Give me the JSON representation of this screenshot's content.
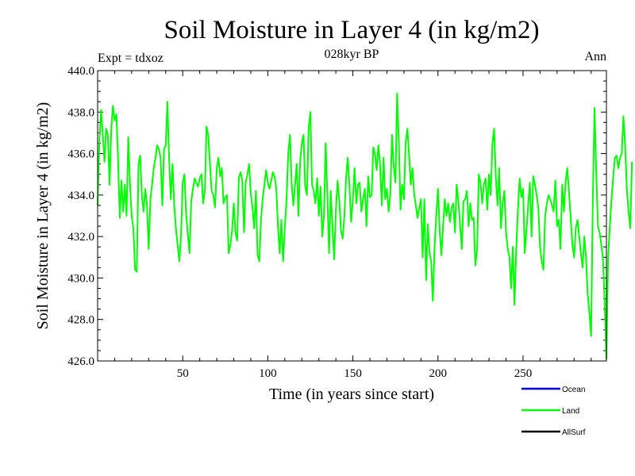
{
  "header": {
    "title": "Soil Moisture in Layer 4 (in kg/m2)",
    "subtitle": "028kyr BP",
    "expt": "Expt = tdxoz",
    "period": "Ann"
  },
  "legend": [
    {
      "name": "Ocean",
      "color": "#0000ff"
    },
    {
      "name": "Land",
      "color": "#00ff00"
    },
    {
      "name": "AllSurf",
      "color": "#000000"
    }
  ],
  "chart_data": {
    "type": "line",
    "title": "Soil Moisture in Layer 4 (in kg/m2)",
    "xlabel": "Time (in years since start)",
    "ylabel": "Soil Moisture in Layer 4 (in kg/m2)",
    "xlim": [
      0,
      299
    ],
    "ylim": [
      426.0,
      440.0
    ],
    "x_ticks": [
      50,
      100,
      150,
      200,
      250
    ],
    "y_ticks": [
      "426.0",
      "428.0",
      "430.0",
      "432.0",
      "434.0",
      "436.0",
      "438.0",
      "440.0"
    ],
    "series": [
      {
        "name": "Land",
        "color": "#00ff00",
        "values": [
          433.5,
          436.5,
          438.1,
          437.0,
          435.6,
          437.2,
          436.9,
          434.5,
          437.2,
          438.3,
          437.6,
          437.9,
          435.8,
          432.9,
          434.7,
          433.2,
          434.5,
          433.0,
          436.8,
          434.6,
          433.0,
          432.4,
          430.4,
          430.3,
          435.5,
          435.9,
          434.0,
          433.2,
          434.3,
          433.5,
          431.4,
          433.8,
          434.5,
          435.3,
          435.8,
          436.4,
          436.2,
          435.8,
          433.5,
          436.2,
          436.4,
          438.5,
          435.8,
          433.8,
          435.5,
          433.5,
          432.4,
          431.6,
          430.8,
          432.0,
          434.6,
          435.0,
          433.1,
          432.1,
          431.2,
          433.7,
          434.3,
          434.8,
          434.6,
          434.4,
          434.8,
          435.0,
          433.6,
          434.2,
          437.3,
          436.9,
          435.5,
          434.2,
          434.0,
          433.4,
          435.3,
          435.8,
          434.9,
          435.3,
          433.6,
          433.9,
          434.0,
          431.2,
          431.6,
          432.3,
          433.6,
          432.2,
          431.8,
          434.8,
          435.1,
          434.7,
          432.2,
          434.6,
          435.0,
          435.5,
          434.1,
          433.4,
          432.4,
          434.2,
          431.1,
          430.8,
          432.8,
          433.8,
          434.5,
          435.2,
          434.6,
          434.3,
          434.7,
          435.1,
          434.9,
          434.3,
          432.5,
          431.2,
          432.8,
          430.8,
          432.4,
          433.8,
          436.0,
          436.9,
          434.6,
          433.5,
          434.5,
          435.5,
          433.0,
          435.6,
          436.5,
          436.9,
          434.4,
          434.0,
          437.2,
          438.0,
          434.5,
          434.2,
          433.6,
          434.8,
          433.0,
          434.4,
          432.0,
          433.0,
          436.5,
          434.0,
          431.2,
          434.2,
          432.5,
          430.9,
          433.2,
          434.7,
          433.8,
          432.3,
          431.9,
          433.0,
          434.8,
          435.8,
          434.4,
          432.7,
          433.8,
          435.3,
          433.6,
          434.5,
          434.6,
          433.2,
          433.8,
          434.3,
          432.5,
          434.9,
          433.9,
          434.0,
          436.3,
          436.0,
          435.2,
          436.4,
          435.4,
          433.5,
          435.8,
          433.8,
          434.3,
          433.2,
          434.0,
          436.9,
          435.4,
          434.6,
          438.9,
          436.5,
          433.3,
          434.5,
          433.8,
          436.5,
          437.2,
          436.0,
          434.5,
          435.3,
          434.1,
          433.5,
          432.9,
          433.4,
          433.8,
          431.0,
          433.8,
          429.9,
          432.6,
          431.3,
          430.8,
          428.9,
          431.5,
          433.0,
          434.3,
          432.3,
          431.1,
          432.5,
          433.8,
          433.0,
          433.6,
          432.7,
          433.4,
          433.6,
          432.2,
          434.5,
          433.7,
          432.6,
          431.4,
          433.7,
          433.8,
          434.2,
          432.5,
          433.6,
          432.8,
          432.9,
          430.6,
          431.4,
          435.0,
          434.6,
          433.6,
          434.5,
          434.8,
          433.3,
          435.0,
          434.0,
          436.5,
          437.2,
          434.8,
          433.5,
          435.3,
          432.4,
          433.6,
          434.2,
          432.2,
          431.4,
          431.0,
          429.5,
          431.5,
          428.7,
          431.4,
          433.3,
          434.8,
          433.9,
          434.3,
          431.2,
          432.3,
          433.5,
          434.6,
          432.0,
          434.9,
          434.5,
          434.0,
          433.4,
          431.5,
          430.8,
          430.4,
          433.0,
          433.6,
          434.0,
          433.8,
          433.5,
          433.2,
          434.7,
          432.5,
          432.8,
          431.4,
          434.5,
          433.2,
          434.6,
          435.3,
          434.2,
          432.9,
          431.6,
          431.0,
          432.4,
          432.8,
          432.0,
          431.2,
          430.5,
          432.0,
          431.0,
          429.2,
          428.3,
          427.2,
          433.6,
          438.2,
          435.2,
          432.5,
          432.2,
          431.6,
          430.9,
          428.7,
          426.1,
          431.0,
          432.5,
          433.8,
          434.9,
          435.8,
          435.9,
          435.3,
          435.8,
          436.0,
          437.8,
          436.4,
          434.3,
          433.2,
          432.4,
          435.6
        ]
      },
      {
        "name": "Ocean",
        "color": "#0000ff",
        "values": []
      },
      {
        "name": "AllSurf",
        "color": "#000000",
        "values": []
      }
    ]
  }
}
